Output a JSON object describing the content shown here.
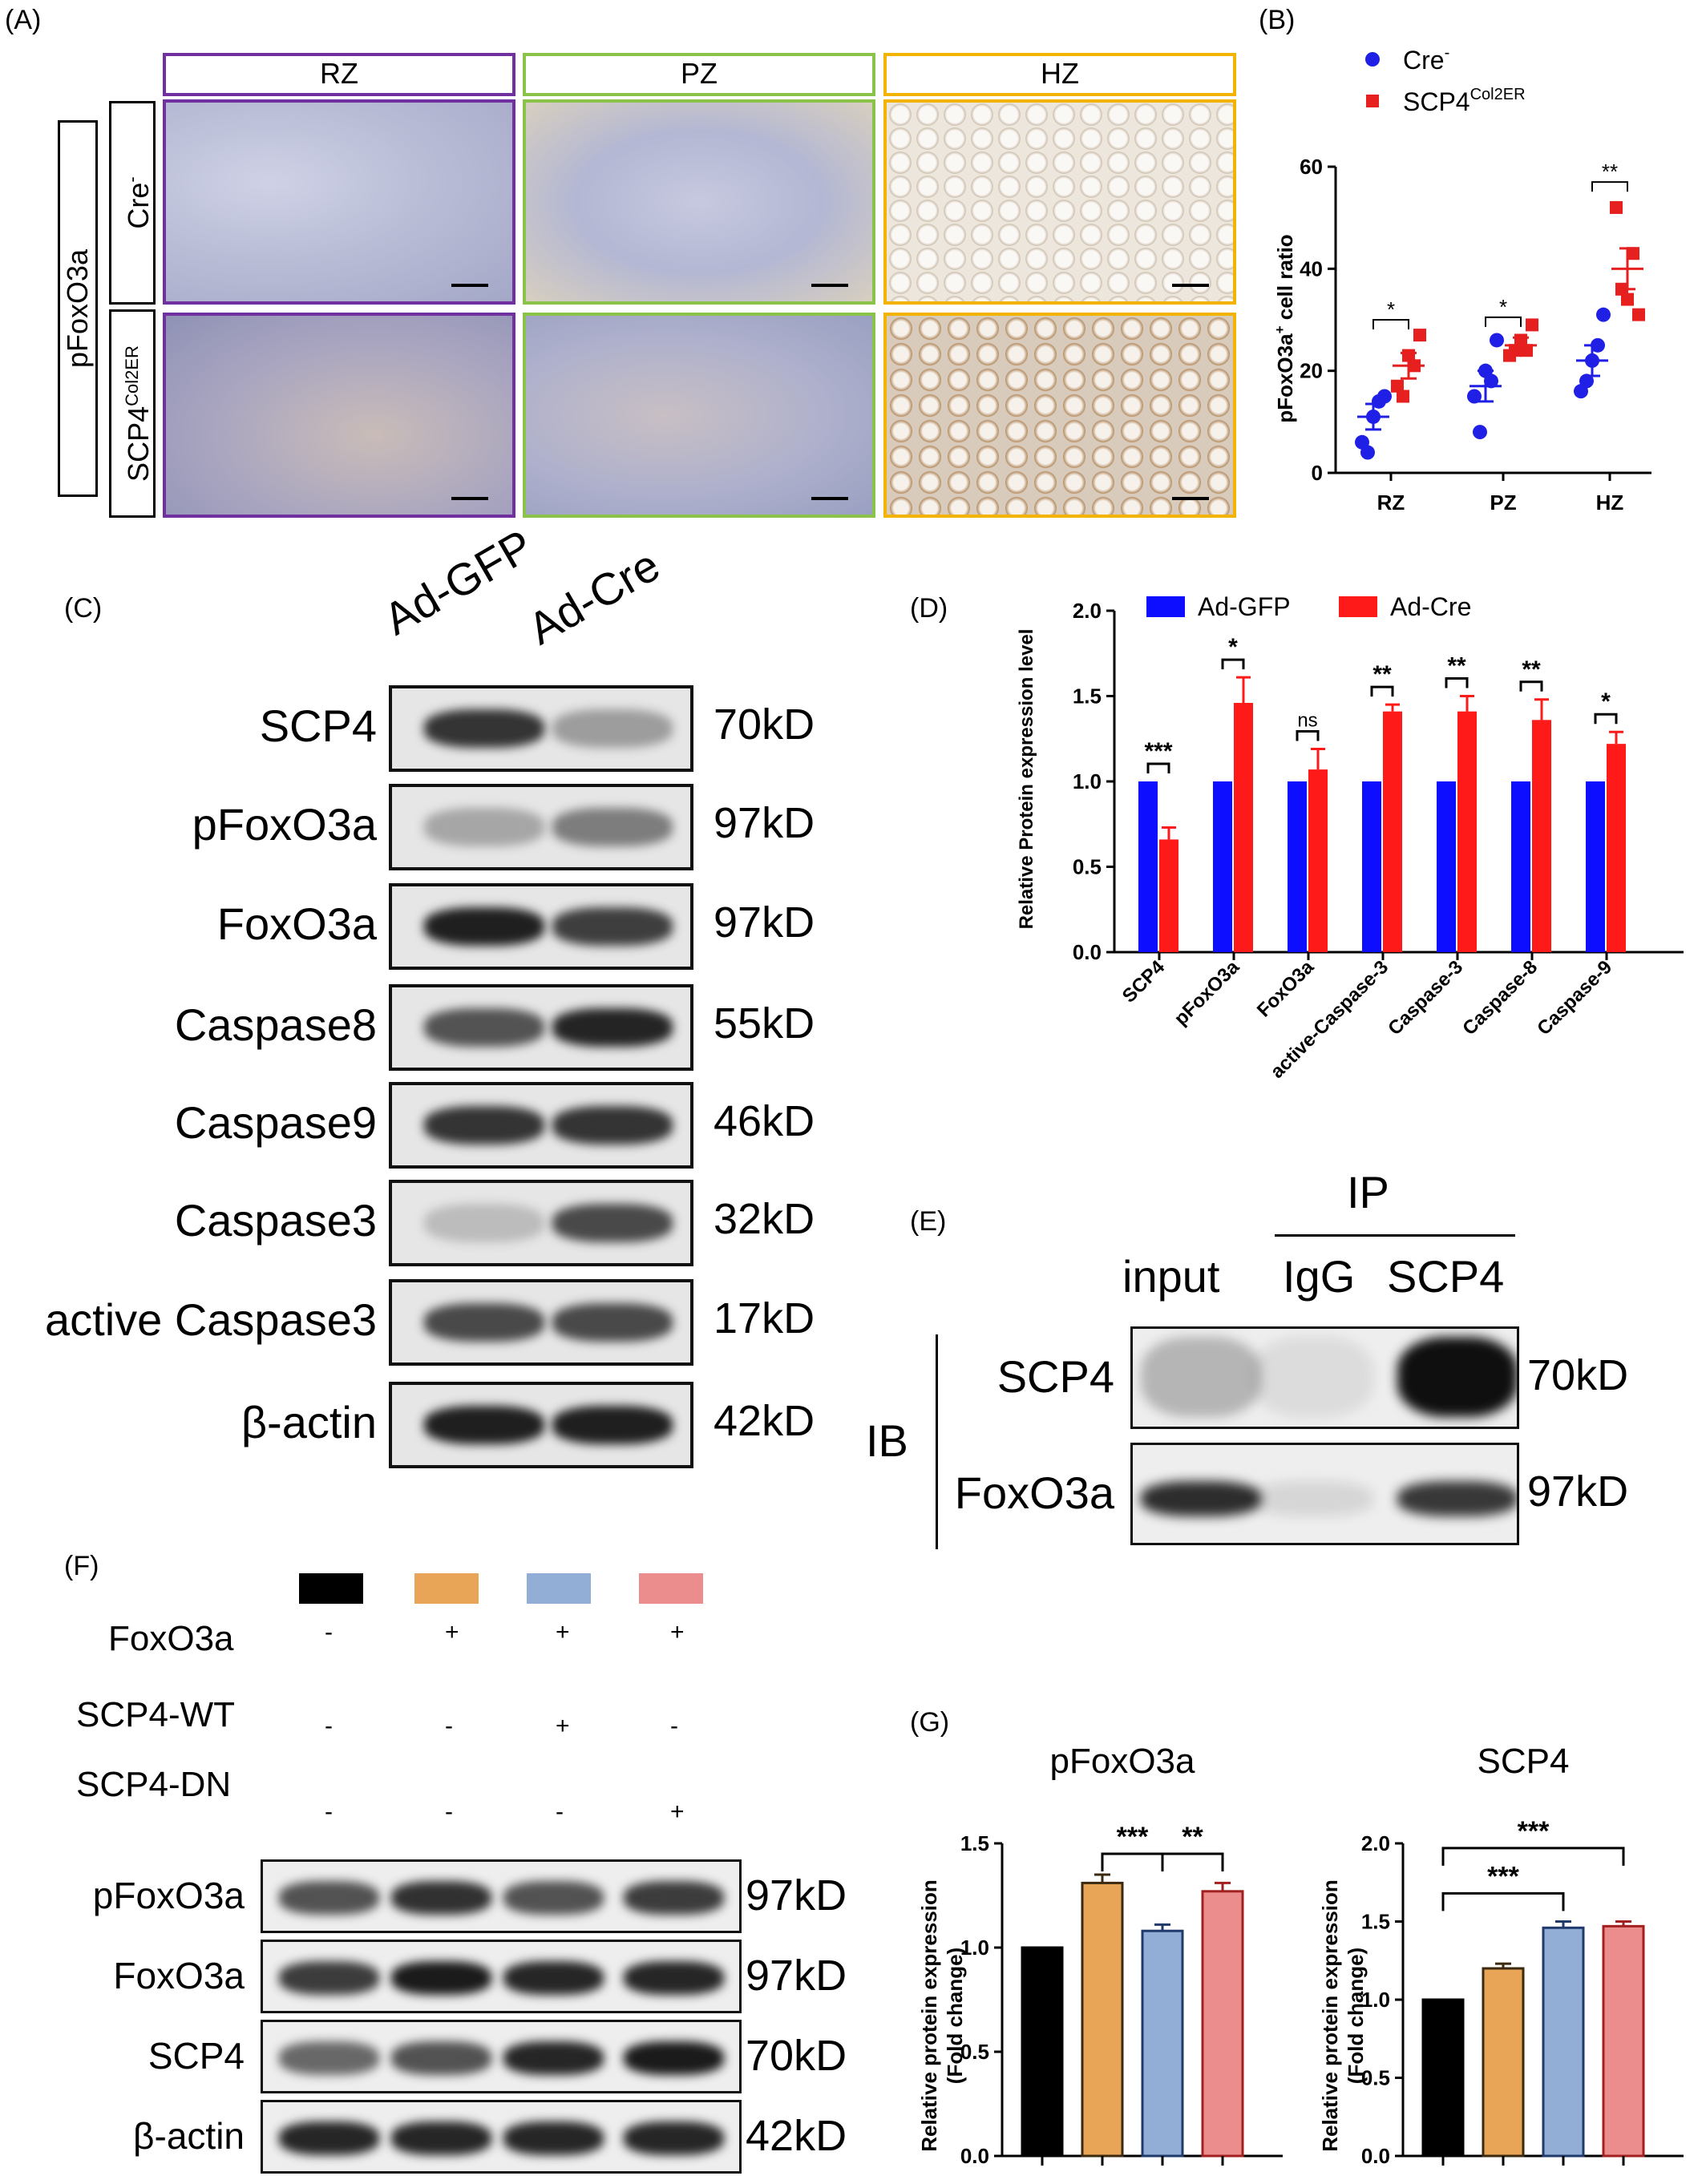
{
  "panels": {
    "A": "(A)",
    "B": "(B)",
    "C": "(C)",
    "D": "(D)",
    "E": "(E)",
    "F": "(F)",
    "G": "(G)"
  },
  "panelA": {
    "zones": [
      "RZ",
      "PZ",
      "HZ"
    ],
    "zone_colors": [
      "#7030a0",
      "#8bc34a",
      "#f2b400"
    ],
    "marker": "pFoxO3a",
    "row_cre": "Cre",
    "row_cre_sup": "-",
    "row_scp4": "SCP4",
    "row_scp4_sup": "Col2ER"
  },
  "panelC": {
    "lanes": [
      "Ad-GFP",
      "Ad-Cre"
    ],
    "blots": [
      {
        "label": "SCP4",
        "kd": "70kD"
      },
      {
        "label": "pFoxO3a",
        "kd": "97kD"
      },
      {
        "label": "FoxO3a",
        "kd": "97kD"
      },
      {
        "label": "Caspase8",
        "kd": "55kD"
      },
      {
        "label": "Caspase9",
        "kd": "46kD"
      },
      {
        "label": "Caspase3",
        "kd": "32kD"
      },
      {
        "label": "active Caspase3",
        "kd": "17kD"
      },
      {
        "label": "β-actin",
        "kd": "42kD"
      }
    ]
  },
  "panelE": {
    "ip_label": "IP",
    "ib_label": "IB",
    "lanes": [
      "input",
      "IgG",
      "SCP4"
    ],
    "blots": [
      {
        "label": "SCP4",
        "kd": "70kD"
      },
      {
        "label": "FoxO3a",
        "kd": "97kD"
      }
    ]
  },
  "panelF": {
    "lane_colors": [
      "#000000",
      "#e8a457",
      "#92aed6",
      "#ec8d8d"
    ],
    "rows": [
      {
        "label": "FoxO3a",
        "signs": [
          "-",
          "+",
          "+",
          "+"
        ]
      },
      {
        "label": "SCP4-WT",
        "signs": [
          "-",
          "-",
          "+",
          "-"
        ]
      },
      {
        "label": "SCP4-DN",
        "signs": [
          "-",
          "-",
          "-",
          "+"
        ]
      }
    ],
    "blots": [
      {
        "label": "pFoxO3a",
        "kd": "97kD"
      },
      {
        "label": "FoxO3a",
        "kd": "97kD"
      },
      {
        "label": "SCP4",
        "kd": "70kD"
      },
      {
        "label": "β-actin",
        "kd": "42kD"
      }
    ]
  },
  "chart_data": [
    {
      "id": "B",
      "type": "scatter",
      "ylabel_main": "pFoxO3a",
      "ylabel_sup": "+",
      "ylabel_rest": " cell ratio",
      "categories": [
        "RZ",
        "PZ",
        "HZ"
      ],
      "yticks": [
        0,
        20,
        40,
        60
      ],
      "ylim": [
        0,
        60
      ],
      "legend_placement": "top",
      "series": [
        {
          "name": "Cre",
          "name_sup": "-",
          "color": "#1f1fe6",
          "points": [
            [
              6,
              11,
              15,
              4,
              14
            ],
            [
              15,
              20,
              26,
              8,
              18
            ],
            [
              16,
              22,
              31,
              18,
              25
            ]
          ],
          "means": [
            11,
            17,
            22
          ],
          "sems": [
            2.5,
            3,
            3
          ]
        },
        {
          "name": "SCP4",
          "name_sup": "Col2ER",
          "color": "#e61f1f",
          "points": [
            [
              17,
              23,
              27,
              15,
              21
            ],
            [
              23,
              26,
              29,
              24,
              24
            ],
            [
              52,
              34,
              31,
              36,
              43
            ]
          ],
          "means": [
            21,
            25,
            40
          ],
          "sems": [
            2.5,
            1.5,
            4
          ]
        }
      ],
      "significance": [
        "*",
        "*",
        "**"
      ]
    },
    {
      "id": "D",
      "type": "bar",
      "ylabel": "Relative Protein expression level",
      "categories": [
        "SCP4",
        "pFoxO3a",
        "FoxO3a",
        "active-Caspase-3",
        "Caspase-3",
        "Caspase-8",
        "Caspase-9"
      ],
      "yticks": [
        "0.0",
        "0.5",
        "1.0",
        "1.5",
        "2.0"
      ],
      "ylim": [
        0,
        2.0
      ],
      "legend_placement": "top",
      "series": [
        {
          "name": "Ad-GFP",
          "color": "#0d0dff",
          "values": [
            1,
            1,
            1,
            1,
            1,
            1,
            1
          ]
        },
        {
          "name": "Ad-Cre",
          "color": "#ff1a1a",
          "values": [
            0.66,
            1.46,
            1.07,
            1.41,
            1.41,
            1.36,
            1.22
          ],
          "errors": [
            0.07,
            0.15,
            0.12,
            0.04,
            0.09,
            0.12,
            0.07
          ]
        }
      ],
      "significance": [
        "***",
        "*",
        "ns",
        "**",
        "**",
        "**",
        "*"
      ]
    },
    {
      "id": "G1",
      "type": "bar",
      "title": "pFoxO3a",
      "ylabel": "Relative protein expression",
      "ylabel2": "(Fold change)",
      "yticks": [
        "0.0",
        "0.5",
        "1.0",
        "1.5"
      ],
      "ylim": [
        0,
        1.5
      ],
      "values": [
        1.0,
        1.31,
        1.08,
        1.27
      ],
      "errors": [
        0,
        0.04,
        0.03,
        0.04
      ],
      "colors": [
        "#000000",
        "#e8a457",
        "#92aed6",
        "#ec8d8d"
      ],
      "significance": [
        "***",
        "**"
      ]
    },
    {
      "id": "G2",
      "type": "bar",
      "title": "SCP4",
      "ylabel": "Relative protein expression",
      "ylabel2": "(Fold change)",
      "yticks": [
        "0.0",
        "0.5",
        "1.0",
        "1.5",
        "2.0"
      ],
      "ylim": [
        0,
        2.0
      ],
      "values": [
        1.0,
        1.2,
        1.46,
        1.47
      ],
      "errors": [
        0,
        0.03,
        0.04,
        0.03
      ],
      "colors": [
        "#000000",
        "#e8a457",
        "#92aed6",
        "#ec8d8d"
      ],
      "significance": [
        "***",
        "***"
      ]
    }
  ]
}
